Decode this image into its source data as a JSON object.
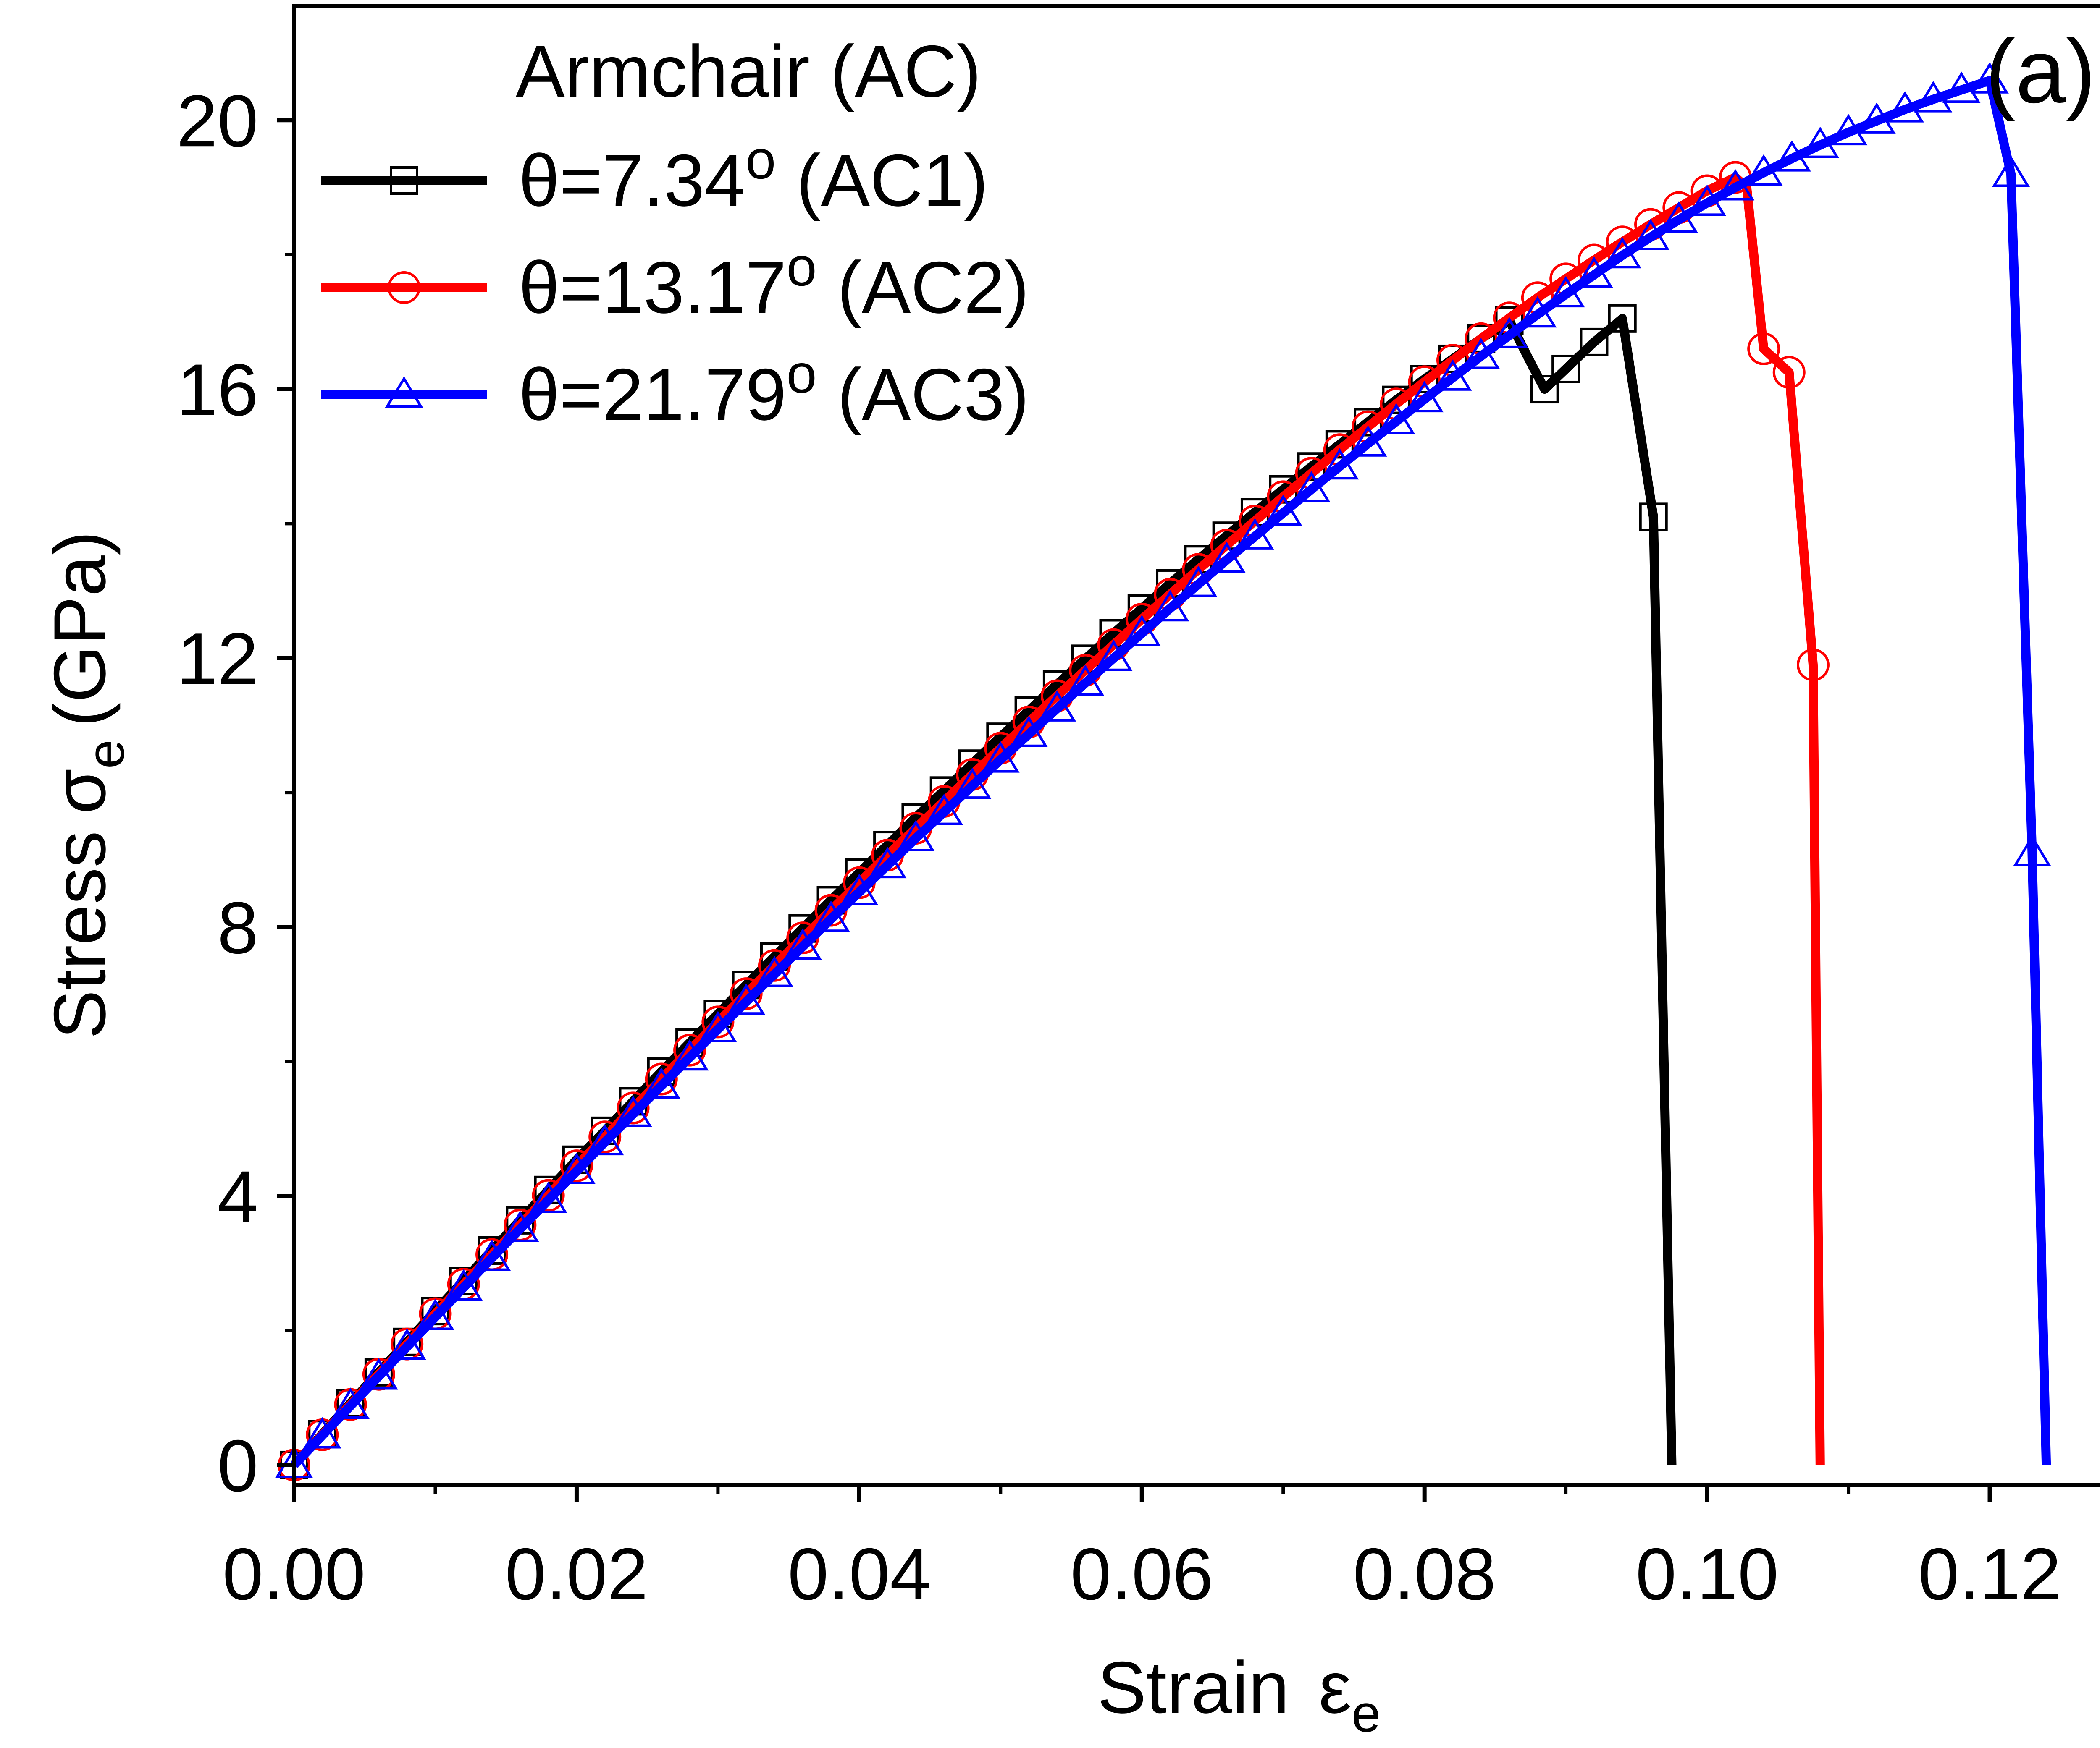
{
  "chart_data": {
    "type": "line",
    "panel_label": "(a)",
    "legend_title": "Armchair (AC)",
    "xlabel": {
      "main": "Strain",
      "symbol": "ε",
      "subscript": "e"
    },
    "ylabel": {
      "main": "Stress",
      "symbol": "σ",
      "subscript": "e",
      "unit": "(GPa)"
    },
    "xlim": [
      0,
      0.13
    ],
    "ylim": [
      -0.3,
      21.7
    ],
    "xticks": [
      0.0,
      0.02,
      0.04,
      0.06,
      0.08,
      0.1,
      0.12
    ],
    "xtick_labels": [
      "0.00",
      "0.02",
      "0.04",
      "0.06",
      "0.08",
      "0.10",
      "0.12"
    ],
    "xminor": [
      0.01,
      0.03,
      0.05,
      0.07,
      0.09,
      0.11,
      0.13
    ],
    "yticks": [
      0,
      4,
      8,
      12,
      16,
      20
    ],
    "ytick_labels": [
      "0",
      "4",
      "8",
      "12",
      "16",
      "20"
    ],
    "yminor": [
      2,
      6,
      10,
      14,
      18
    ],
    "grid": false,
    "legend_position": "top-left",
    "series": [
      {
        "name": "θ=7.34o   (AC1)",
        "legend_main": "θ=7.34",
        "legend_tail": "   (AC1)",
        "color": "#000000",
        "marker": "square",
        "x": [
          0,
          0.002,
          0.004,
          0.006,
          0.008,
          0.01,
          0.012,
          0.014,
          0.016,
          0.018,
          0.02,
          0.022,
          0.024,
          0.026,
          0.028,
          0.03,
          0.032,
          0.034,
          0.036,
          0.038,
          0.04,
          0.042,
          0.044,
          0.046,
          0.048,
          0.05,
          0.052,
          0.054,
          0.056,
          0.058,
          0.06,
          0.062,
          0.064,
          0.066,
          0.068,
          0.07,
          0.072,
          0.074,
          0.076,
          0.078,
          0.08,
          0.082,
          0.084,
          0.086,
          0.0875,
          0.0885,
          0.09,
          0.092,
          0.094,
          0.0962,
          0.0975
        ],
        "y": [
          0,
          0.46,
          0.92,
          1.38,
          1.83,
          2.29,
          2.74,
          3.19,
          3.64,
          4.09,
          4.54,
          4.97,
          5.41,
          5.85,
          6.28,
          6.71,
          7.14,
          7.56,
          7.98,
          8.4,
          8.81,
          9.22,
          9.63,
          10.03,
          10.43,
          10.83,
          11.22,
          11.61,
          11.99,
          12.37,
          12.74,
          13.11,
          13.47,
          13.82,
          14.17,
          14.51,
          14.85,
          15.18,
          15.51,
          15.84,
          16.15,
          16.45,
          16.75,
          17.02,
          16.4,
          16.0,
          16.3,
          16.7,
          17.05,
          14.1,
          0
        ],
        "marker_idx": [
          0,
          1,
          2,
          3,
          4,
          5,
          6,
          7,
          8,
          9,
          10,
          11,
          12,
          13,
          14,
          15,
          16,
          17,
          18,
          19,
          20,
          21,
          22,
          23,
          24,
          25,
          26,
          27,
          28,
          29,
          30,
          31,
          32,
          33,
          34,
          35,
          36,
          37,
          38,
          39,
          40,
          41,
          42,
          43,
          45,
          46,
          47,
          48,
          49
        ]
      },
      {
        "name": "θ=13.17o (AC2)",
        "legend_main": "θ=13.17",
        "legend_tail": " (AC2)",
        "color": "#ff0000",
        "marker": "circle",
        "x": [
          0,
          0.002,
          0.004,
          0.006,
          0.008,
          0.01,
          0.012,
          0.014,
          0.016,
          0.018,
          0.02,
          0.022,
          0.024,
          0.026,
          0.028,
          0.03,
          0.032,
          0.034,
          0.036,
          0.038,
          0.04,
          0.042,
          0.044,
          0.046,
          0.048,
          0.05,
          0.052,
          0.054,
          0.056,
          0.058,
          0.06,
          0.062,
          0.064,
          0.066,
          0.068,
          0.07,
          0.072,
          0.074,
          0.076,
          0.078,
          0.08,
          0.082,
          0.084,
          0.086,
          0.088,
          0.09,
          0.092,
          0.094,
          0.096,
          0.098,
          0.1,
          0.102,
          0.1028,
          0.104,
          0.1058,
          0.1075,
          0.108
        ],
        "y": [
          0,
          0.45,
          0.9,
          1.35,
          1.8,
          2.25,
          2.69,
          3.13,
          3.57,
          4.01,
          4.45,
          4.88,
          5.31,
          5.74,
          6.17,
          6.59,
          7.01,
          7.43,
          7.84,
          8.25,
          8.66,
          9.07,
          9.47,
          9.87,
          10.27,
          10.66,
          11.05,
          11.44,
          11.82,
          12.2,
          12.58,
          12.95,
          13.32,
          13.68,
          14.04,
          14.4,
          14.75,
          15.1,
          15.44,
          15.78,
          16.11,
          16.43,
          16.75,
          17.06,
          17.36,
          17.64,
          17.92,
          18.19,
          18.45,
          18.7,
          18.95,
          19.15,
          19.0,
          16.6,
          16.25,
          11.9,
          0
        ],
        "marker_idx": [
          0,
          1,
          2,
          3,
          4,
          5,
          6,
          7,
          8,
          9,
          10,
          11,
          12,
          13,
          14,
          15,
          16,
          17,
          18,
          19,
          20,
          21,
          22,
          23,
          24,
          25,
          26,
          27,
          28,
          29,
          30,
          31,
          32,
          33,
          34,
          35,
          36,
          37,
          38,
          39,
          40,
          41,
          42,
          43,
          44,
          45,
          46,
          47,
          48,
          49,
          50,
          51,
          53,
          54,
          55
        ]
      },
      {
        "name": "θ=21.79o (AC3)",
        "legend_main": "θ=21.79",
        "legend_tail": " (AC3)",
        "color": "#0000ff",
        "marker": "triangle",
        "x": [
          0,
          0.002,
          0.004,
          0.006,
          0.008,
          0.01,
          0.012,
          0.014,
          0.016,
          0.018,
          0.02,
          0.022,
          0.024,
          0.026,
          0.028,
          0.03,
          0.032,
          0.034,
          0.036,
          0.038,
          0.04,
          0.042,
          0.044,
          0.046,
          0.048,
          0.05,
          0.052,
          0.054,
          0.056,
          0.058,
          0.06,
          0.062,
          0.064,
          0.066,
          0.068,
          0.07,
          0.072,
          0.074,
          0.076,
          0.078,
          0.08,
          0.082,
          0.084,
          0.086,
          0.088,
          0.09,
          0.092,
          0.094,
          0.096,
          0.098,
          0.1,
          0.102,
          0.104,
          0.106,
          0.108,
          0.11,
          0.112,
          0.114,
          0.116,
          0.118,
          0.12,
          0.1215,
          0.123,
          0.124
        ],
        "y": [
          0,
          0.44,
          0.88,
          1.32,
          1.76,
          2.2,
          2.64,
          3.08,
          3.51,
          3.94,
          4.37,
          4.8,
          5.22,
          5.64,
          6.06,
          6.48,
          6.89,
          7.3,
          7.71,
          8.12,
          8.52,
          8.92,
          9.32,
          9.71,
          10.1,
          10.49,
          10.87,
          11.25,
          11.63,
          12.0,
          12.37,
          12.74,
          13.1,
          13.46,
          13.81,
          14.16,
          14.51,
          14.85,
          15.19,
          15.52,
          15.85,
          16.17,
          16.49,
          16.8,
          17.11,
          17.41,
          17.7,
          17.99,
          18.26,
          18.52,
          18.77,
          19.0,
          19.22,
          19.43,
          19.63,
          19.82,
          19.99,
          20.16,
          20.31,
          20.45,
          20.59,
          19.2,
          9.1,
          0
        ],
        "marker_idx": [
          0,
          1,
          2,
          3,
          4,
          5,
          6,
          7,
          8,
          9,
          10,
          11,
          12,
          13,
          14,
          15,
          16,
          17,
          18,
          19,
          20,
          21,
          22,
          23,
          24,
          25,
          26,
          27,
          28,
          29,
          30,
          31,
          32,
          33,
          34,
          35,
          36,
          37,
          38,
          39,
          40,
          41,
          42,
          43,
          44,
          45,
          46,
          47,
          48,
          49,
          50,
          51,
          52,
          53,
          54,
          55,
          56,
          57,
          58,
          59,
          60,
          61,
          62
        ]
      }
    ]
  }
}
